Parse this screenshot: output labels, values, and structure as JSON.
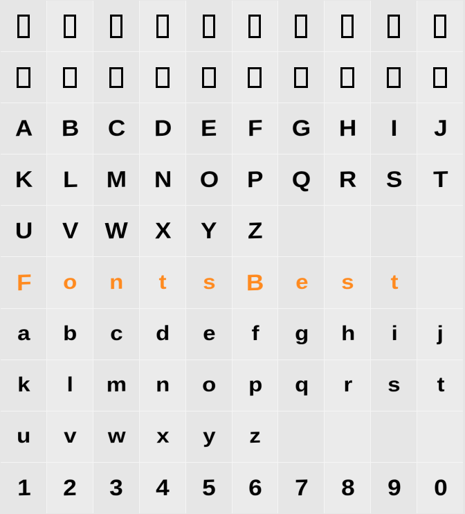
{
  "grid": {
    "columns": 10,
    "rows": 10,
    "background_color": "#e6e6e6",
    "alt_background_color": "#ebebeb",
    "divider_color": "#f5f5f5",
    "glyph_color": "#000000",
    "accent_color": "#ff8a1f",
    "glyph_fontsize": 32,
    "cells": [
      [
        {
          "t": "box"
        },
        {
          "t": "box"
        },
        {
          "t": "box"
        },
        {
          "t": "box"
        },
        {
          "t": "box"
        },
        {
          "t": "box"
        },
        {
          "t": "box"
        },
        {
          "t": "box"
        },
        {
          "t": "box"
        },
        {
          "t": "box"
        }
      ],
      [
        {
          "t": "box"
        },
        {
          "t": "box"
        },
        {
          "t": "box"
        },
        {
          "t": "box"
        },
        {
          "t": "box"
        },
        {
          "t": "box"
        },
        {
          "t": "box"
        },
        {
          "t": "box"
        },
        {
          "t": "box"
        },
        {
          "t": "box"
        }
      ],
      [
        {
          "t": "char",
          "v": "A"
        },
        {
          "t": "char",
          "v": "B"
        },
        {
          "t": "char",
          "v": "C"
        },
        {
          "t": "char",
          "v": "D"
        },
        {
          "t": "char",
          "v": "E"
        },
        {
          "t": "char",
          "v": "F"
        },
        {
          "t": "char",
          "v": "G"
        },
        {
          "t": "char",
          "v": "H"
        },
        {
          "t": "char",
          "v": "I"
        },
        {
          "t": "char",
          "v": "J"
        }
      ],
      [
        {
          "t": "char",
          "v": "K"
        },
        {
          "t": "char",
          "v": "L"
        },
        {
          "t": "char",
          "v": "M"
        },
        {
          "t": "char",
          "v": "N"
        },
        {
          "t": "char",
          "v": "O"
        },
        {
          "t": "char",
          "v": "P"
        },
        {
          "t": "char",
          "v": "Q"
        },
        {
          "t": "char",
          "v": "R"
        },
        {
          "t": "char",
          "v": "S"
        },
        {
          "t": "char",
          "v": "T"
        }
      ],
      [
        {
          "t": "char",
          "v": "U"
        },
        {
          "t": "char",
          "v": "V"
        },
        {
          "t": "char",
          "v": "W"
        },
        {
          "t": "char",
          "v": "X"
        },
        {
          "t": "char",
          "v": "Y"
        },
        {
          "t": "char",
          "v": "Z"
        },
        {
          "t": "empty"
        },
        {
          "t": "empty"
        },
        {
          "t": "empty"
        },
        {
          "t": "empty"
        }
      ],
      [
        {
          "t": "char",
          "v": "F",
          "c": "orange"
        },
        {
          "t": "char",
          "v": "o",
          "c": "orange lower"
        },
        {
          "t": "char",
          "v": "n",
          "c": "orange lower"
        },
        {
          "t": "char",
          "v": "t",
          "c": "orange lower"
        },
        {
          "t": "char",
          "v": "s",
          "c": "orange lower"
        },
        {
          "t": "char",
          "v": "B",
          "c": "orange"
        },
        {
          "t": "char",
          "v": "e",
          "c": "orange lower"
        },
        {
          "t": "char",
          "v": "s",
          "c": "orange lower"
        },
        {
          "t": "char",
          "v": "t",
          "c": "orange lower"
        },
        {
          "t": "empty"
        }
      ],
      [
        {
          "t": "char",
          "v": "a",
          "c": "lower"
        },
        {
          "t": "char",
          "v": "b",
          "c": "lower"
        },
        {
          "t": "char",
          "v": "c",
          "c": "lower"
        },
        {
          "t": "char",
          "v": "d",
          "c": "lower"
        },
        {
          "t": "char",
          "v": "e",
          "c": "lower"
        },
        {
          "t": "char",
          "v": "f",
          "c": "lower"
        },
        {
          "t": "char",
          "v": "g",
          "c": "lower"
        },
        {
          "t": "char",
          "v": "h",
          "c": "lower"
        },
        {
          "t": "char",
          "v": "i",
          "c": "lower"
        },
        {
          "t": "char",
          "v": "j",
          "c": "lower"
        }
      ],
      [
        {
          "t": "char",
          "v": "k",
          "c": "lower"
        },
        {
          "t": "char",
          "v": "l",
          "c": "lower"
        },
        {
          "t": "char",
          "v": "m",
          "c": "lower"
        },
        {
          "t": "char",
          "v": "n",
          "c": "lower"
        },
        {
          "t": "char",
          "v": "o",
          "c": "lower"
        },
        {
          "t": "char",
          "v": "p",
          "c": "lower"
        },
        {
          "t": "char",
          "v": "q",
          "c": "lower"
        },
        {
          "t": "char",
          "v": "r",
          "c": "lower"
        },
        {
          "t": "char",
          "v": "s",
          "c": "lower"
        },
        {
          "t": "char",
          "v": "t",
          "c": "lower"
        }
      ],
      [
        {
          "t": "char",
          "v": "u",
          "c": "lower"
        },
        {
          "t": "char",
          "v": "v",
          "c": "lower"
        },
        {
          "t": "char",
          "v": "w",
          "c": "lower"
        },
        {
          "t": "char",
          "v": "x",
          "c": "lower"
        },
        {
          "t": "char",
          "v": "y",
          "c": "lower"
        },
        {
          "t": "char",
          "v": "z",
          "c": "lower"
        },
        {
          "t": "empty"
        },
        {
          "t": "empty"
        },
        {
          "t": "empty"
        },
        {
          "t": "empty"
        }
      ],
      [
        {
          "t": "char",
          "v": "1",
          "c": "num"
        },
        {
          "t": "char",
          "v": "2",
          "c": "num"
        },
        {
          "t": "char",
          "v": "3",
          "c": "num"
        },
        {
          "t": "char",
          "v": "4",
          "c": "num"
        },
        {
          "t": "char",
          "v": "5",
          "c": "num"
        },
        {
          "t": "char",
          "v": "6",
          "c": "num"
        },
        {
          "t": "char",
          "v": "7",
          "c": "num"
        },
        {
          "t": "char",
          "v": "8",
          "c": "num"
        },
        {
          "t": "char",
          "v": "9",
          "c": "num"
        },
        {
          "t": "char",
          "v": "0",
          "c": "num"
        }
      ]
    ]
  }
}
